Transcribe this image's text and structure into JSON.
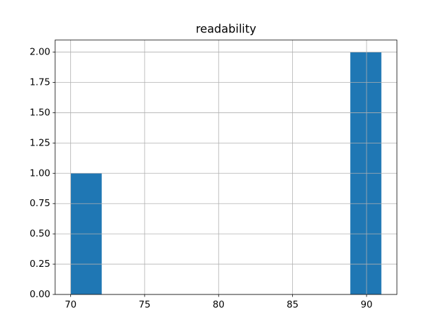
{
  "chart_data": {
    "type": "histogram",
    "title": "readability",
    "bins": [
      70,
      72.1,
      74.2,
      76.3,
      78.4,
      80.5,
      82.6,
      84.7,
      86.8,
      88.9,
      91
    ],
    "counts": [
      1,
      0,
      0,
      0,
      0,
      0,
      0,
      0,
      0,
      2
    ],
    "color": "#1f77b4",
    "xlim": [
      68.95,
      92.05
    ],
    "xticks": [
      70,
      75,
      80,
      85,
      90
    ],
    "ylim": [
      0,
      2.1
    ],
    "yticks": [
      {
        "value": 0,
        "label": "0.00"
      },
      {
        "value": 0.25,
        "label": "0.25"
      },
      {
        "value": 0.5,
        "label": "0.50"
      },
      {
        "value": 0.75,
        "label": "0.75"
      },
      {
        "value": 1,
        "label": "1.00"
      },
      {
        "value": 1.25,
        "label": "1.25"
      },
      {
        "value": 1.5,
        "label": "1.50"
      },
      {
        "value": 1.75,
        "label": "1.75"
      },
      {
        "value": 2,
        "label": "2.00"
      }
    ],
    "grid": true
  }
}
